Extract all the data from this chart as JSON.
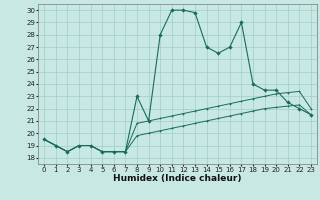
{
  "xlabel": "Humidex (Indice chaleur)",
  "bg_color": "#c8e8e4",
  "line_color": "#1a6b5a",
  "xlim": [
    -0.5,
    23.5
  ],
  "ylim": [
    17.5,
    30.5
  ],
  "xticks": [
    0,
    1,
    2,
    3,
    4,
    5,
    6,
    7,
    8,
    9,
    10,
    11,
    12,
    13,
    14,
    15,
    16,
    17,
    18,
    19,
    20,
    21,
    22,
    23
  ],
  "yticks": [
    18,
    19,
    20,
    21,
    22,
    23,
    24,
    25,
    26,
    27,
    28,
    29,
    30
  ],
  "series1_x": [
    0,
    1,
    2,
    3,
    4,
    5,
    6,
    7,
    8,
    9,
    10,
    11,
    12,
    13,
    14,
    15,
    16,
    17,
    18,
    19,
    20,
    21,
    22,
    23
  ],
  "series1_y": [
    19.5,
    19.0,
    18.5,
    19.0,
    19.0,
    18.5,
    18.5,
    18.5,
    23.0,
    21.0,
    28.0,
    30.0,
    30.0,
    29.8,
    27.0,
    26.5,
    27.0,
    29.0,
    24.0,
    23.5,
    23.5,
    22.5,
    22.0,
    21.5
  ],
  "series2_x": [
    0,
    1,
    2,
    3,
    4,
    5,
    6,
    7,
    8,
    9,
    10,
    11,
    12,
    13,
    14,
    15,
    16,
    17,
    18,
    19,
    20,
    21,
    22,
    23
  ],
  "series2_y": [
    19.5,
    19.0,
    18.5,
    19.0,
    19.0,
    18.5,
    18.5,
    18.5,
    20.8,
    21.0,
    21.2,
    21.4,
    21.6,
    21.8,
    22.0,
    22.2,
    22.4,
    22.6,
    22.8,
    23.0,
    23.2,
    23.3,
    23.4,
    22.0
  ],
  "series3_x": [
    0,
    1,
    2,
    3,
    4,
    5,
    6,
    7,
    8,
    9,
    10,
    11,
    12,
    13,
    14,
    15,
    16,
    17,
    18,
    19,
    20,
    21,
    22,
    23
  ],
  "series3_y": [
    19.5,
    19.0,
    18.5,
    19.0,
    19.0,
    18.5,
    18.5,
    18.5,
    19.8,
    20.0,
    20.2,
    20.4,
    20.6,
    20.8,
    21.0,
    21.2,
    21.4,
    21.6,
    21.8,
    22.0,
    22.1,
    22.2,
    22.3,
    21.5
  ],
  "grid_color": "#a0cccc",
  "tick_fontsize": 5,
  "label_fontsize": 6.5
}
